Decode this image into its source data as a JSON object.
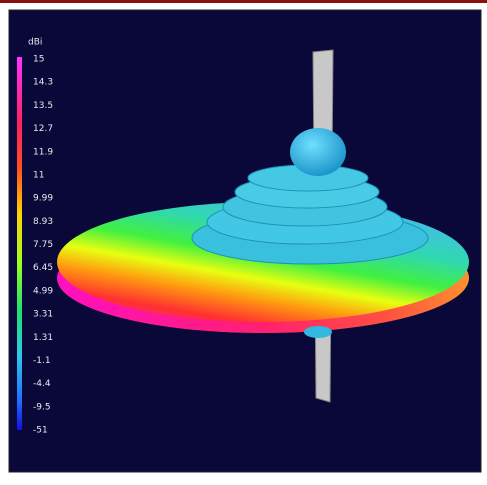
{
  "colorbar": {
    "unit": "dBi",
    "ticks": [
      "15",
      "14.3",
      "13.5",
      "12.7",
      "11.9",
      "11",
      "9.99",
      "8.93",
      "7.75",
      "6.45",
      "4.99",
      "3.31",
      "1.31",
      "-1.1",
      "-4.4",
      "-9.5",
      "-51"
    ]
  }
}
